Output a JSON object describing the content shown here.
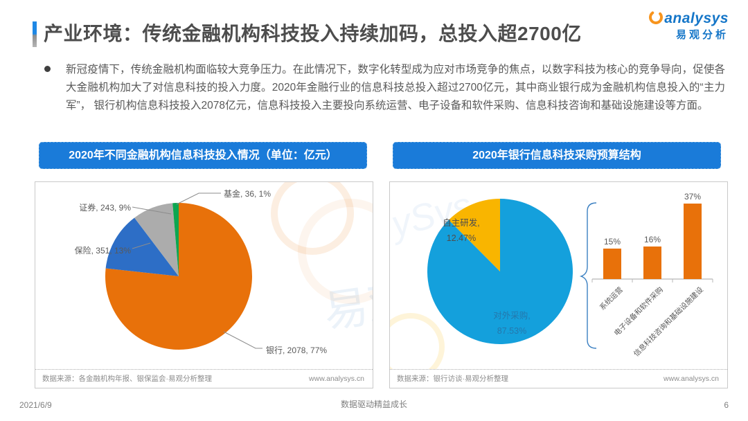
{
  "header": {
    "title": "产业环境：传统金融机构科技投入持续加码，总投入超2700亿",
    "logo_brand": "analysys",
    "logo_cn": "易观分析"
  },
  "paragraph": {
    "text": "新冠疫情下，传统金融机构面临较大竞争压力。在此情况下，数字化转型成为应对市场竞争的焦点，以数字科技为核心的竞争导向，促使各大金融机构加大了对信息科技的投入力度。2020年金融行业的信息科技总投入超过2700亿元，其中商业银行成为金融机构信息投入的“主力军”， 银行机构信息科技投入2078亿元，信息科技投入主要投向系统运营、电子设备和软件采购、信息科技咨询和基础设施建设等方面。"
  },
  "chart_data": [
    {
      "type": "pie",
      "title": "2020年不同金融机构信息科技投入情况（单位：亿元）",
      "unit": "亿元",
      "labels": [
        "银行",
        "保险",
        "证券",
        "基金"
      ],
      "values": [
        2078,
        351,
        243,
        36
      ],
      "percent_labels": [
        "77%",
        "13%",
        "9%",
        "1%"
      ],
      "point_labels": [
        "银行, 2078, 77%",
        "保险, 351, 13%",
        "证券, 243, 9%",
        "基金, 36, 1%"
      ],
      "colors": [
        "#E8710A",
        "#2D6EC6",
        "#ACACAC",
        "#0CA650"
      ],
      "legend": "none",
      "source": "数据来源：各金融机构年报、银保监会·易观分析整理",
      "website": "www.analysys.cn"
    },
    {
      "type": "pie+bar",
      "title": "2020年银行信息科技采购预算结构",
      "pie": {
        "labels": [
          "对外采购",
          "自主研发"
        ],
        "values": [
          87.53,
          12.47
        ],
        "display": [
          [
            "对外采购,",
            "87.53%"
          ],
          [
            "自主研发,",
            "12.47%"
          ]
        ],
        "colors": [
          "#14A0DC",
          "#F9B500"
        ]
      },
      "bar": {
        "categories": [
          "系统运营",
          "电子设备和软件采购",
          "信息科技咨询和基础设施建设"
        ],
        "values": [
          15,
          16,
          37
        ],
        "value_labels": [
          "15%",
          "16%",
          "37%"
        ],
        "color": "#E8710A",
        "ylim": [
          0,
          40
        ]
      },
      "source": "数据来源：银行访谈·易观分析整理",
      "website": "www.analysys.cn"
    }
  ],
  "watermarks": {
    "left_text": "易观",
    "right_text": "ySys"
  },
  "footer": {
    "date": "2021/6/9",
    "slogan": "数据驱动精益成长",
    "page": "6"
  }
}
